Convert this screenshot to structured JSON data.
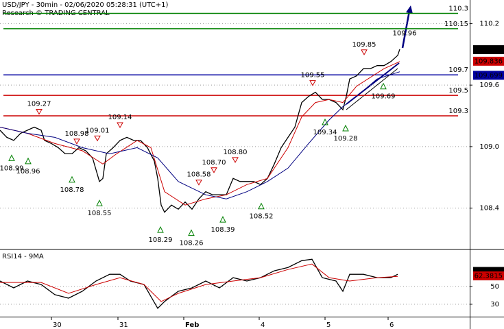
{
  "header": {
    "title": "USD/JPY - 30min - 02/06/2020 05:28:31 (UTC+1)",
    "subtitle": "Research © TRADING CENTRAL"
  },
  "chart_data": [
    {
      "type": "line",
      "panel": "price",
      "xlim": [
        0,
        342.5
      ],
      "ylim": [
        108.01,
        110.43
      ],
      "xticks": [
        {
          "value": 37.5,
          "label": "30"
        },
        {
          "value": 86,
          "label": "31"
        },
        {
          "value": 134,
          "label": "Feb"
        },
        {
          "value": 189,
          "label": "4"
        },
        {
          "value": 237,
          "label": "5"
        },
        {
          "value": 283,
          "label": "6"
        }
      ],
      "yticks": [
        108.4,
        {
          "value": 109,
          "label": "109.0"
        },
        109.6,
        110.2
      ],
      "grid": true,
      "series": [
        {
          "color": "#000000",
          "x": [
            0,
            5,
            10,
            15,
            20,
            25,
            30,
            32.5,
            37.5,
            42.5,
            47.5,
            52.5,
            57.5,
            62.5,
            67.5,
            72.5,
            75,
            77.5,
            82.5,
            87.5,
            92.5,
            97.5,
            102.5,
            107.5,
            112.5,
            115,
            117.5,
            120,
            125,
            130,
            135,
            140,
            145,
            150,
            155,
            160,
            165,
            170,
            175,
            180,
            185,
            190,
            195,
            200,
            205,
            210,
            215,
            220,
            225,
            230,
            235,
            240,
            245,
            250,
            252.5,
            255,
            260,
            265,
            270,
            275,
            280,
            285,
            290,
            291.5
          ],
          "values": [
            109.16,
            109.09,
            109.06,
            109.13,
            109.16,
            109.19,
            109.16,
            109.06,
            109.03,
            108.99,
            108.93,
            108.93,
            108.99,
            108.96,
            108.89,
            108.66,
            108.69,
            108.93,
            108.99,
            109.06,
            109.09,
            109.06,
            109.06,
            108.99,
            108.86,
            108.69,
            108.43,
            108.36,
            108.43,
            108.39,
            108.46,
            108.39,
            108.49,
            108.56,
            108.53,
            108.53,
            108.53,
            108.69,
            108.66,
            108.66,
            108.66,
            108.63,
            108.69,
            108.83,
            108.99,
            109.09,
            109.19,
            109.43,
            109.49,
            109.53,
            109.46,
            109.46,
            109.43,
            109.36,
            109.49,
            109.66,
            109.69,
            109.76,
            109.76,
            109.79,
            109.79,
            109.83,
            109.89,
            109.95
          ]
        },
        {
          "color": "#cc0000",
          "x": [
            0,
            20,
            40,
            60,
            75,
            85,
            100,
            110,
            120,
            135,
            150,
            165,
            180,
            195,
            210,
            220,
            230,
            240,
            250,
            260,
            280,
            291.5
          ],
          "values": [
            109.19,
            109.13,
            109.03,
            108.96,
            108.83,
            108.93,
            109.06,
            108.99,
            108.56,
            108.43,
            108.49,
            108.53,
            108.63,
            108.69,
            108.99,
            109.29,
            109.43,
            109.46,
            109.43,
            109.59,
            109.76,
            109.83
          ]
        },
        {
          "color": "#000080",
          "x": [
            0,
            20,
            40,
            60,
            80,
            100,
            115,
            130,
            150,
            165,
            180,
            195,
            210,
            225,
            240,
            250,
            260,
            275,
            291.5
          ],
          "values": [
            109.19,
            109.13,
            109.09,
            108.99,
            108.93,
            108.99,
            108.89,
            108.66,
            108.53,
            108.49,
            108.56,
            108.66,
            108.79,
            109.03,
            109.26,
            109.39,
            109.49,
            109.66,
            109.73
          ]
        }
      ],
      "levels": [
        {
          "value": 110.3,
          "label": "110.3",
          "color": "#008000"
        },
        {
          "value": 110.15,
          "label": "110.15",
          "color": "#008000"
        },
        {
          "value": 109.7,
          "label": "109.7",
          "color": "#0000a0"
        },
        {
          "value": 109.5,
          "label": "109.5",
          "color": "#cc0000"
        },
        {
          "value": 109.3,
          "label": "109.3",
          "color": "#cc0000"
        }
      ],
      "annotations": [
        {
          "value": 109.27,
          "label": "109.27",
          "x": 28.5,
          "kind": "high"
        },
        {
          "value": 108.98,
          "label": "108.98",
          "x": 56,
          "kind": "high"
        },
        {
          "value": 109.01,
          "label": "109.01",
          "x": 71,
          "kind": "high"
        },
        {
          "value": 109.14,
          "label": "109.14",
          "x": 87.5,
          "kind": "high"
        },
        {
          "value": 108.58,
          "label": "108.58",
          "x": 145,
          "kind": "high"
        },
        {
          "value": 108.7,
          "label": "108.70",
          "x": 156,
          "kind": "high"
        },
        {
          "value": 108.8,
          "label": "108.80",
          "x": 171.5,
          "kind": "high"
        },
        {
          "value": 109.55,
          "label": "109.55",
          "x": 228,
          "kind": "high"
        },
        {
          "value": 109.85,
          "label": "109.85",
          "x": 265.5,
          "kind": "high"
        },
        {
          "value": 109.96,
          "label": "109.96",
          "x": 295,
          "kind": "label"
        },
        {
          "value": 108.99,
          "label": "108.99",
          "x": 8.5,
          "kind": "low"
        },
        {
          "value": 108.96,
          "label": "108.96",
          "x": 20.5,
          "kind": "low"
        },
        {
          "value": 108.78,
          "label": "108.78",
          "x": 52.5,
          "kind": "low"
        },
        {
          "value": 108.55,
          "label": "108.55",
          "x": 72.5,
          "kind": "low"
        },
        {
          "value": 108.29,
          "label": "108.29",
          "x": 117,
          "kind": "low"
        },
        {
          "value": 108.26,
          "label": "108.26",
          "x": 139.5,
          "kind": "low"
        },
        {
          "value": 108.39,
          "label": "108.39",
          "x": 162.5,
          "kind": "low"
        },
        {
          "value": 108.52,
          "label": "108.52",
          "x": 190.5,
          "kind": "low"
        },
        {
          "value": 109.34,
          "label": "109.34",
          "x": 237,
          "kind": "low"
        },
        {
          "value": 109.28,
          "label": "109.28",
          "x": 252,
          "kind": "low"
        },
        {
          "value": 109.69,
          "label": "109.69",
          "x": 279.5,
          "kind": "low"
        }
      ],
      "price_tags": [
        {
          "value": 109.949,
          "label": "109.949",
          "color": "#000000"
        },
        {
          "value": 109.836,
          "label": "109.836",
          "color": "#cc0000"
        },
        {
          "value": 109.699,
          "label": "109.699",
          "color": "#0000a0"
        }
      ]
    },
    {
      "type": "line",
      "panel": "rsi",
      "title": "RSI14 - 9MA",
      "xlim": [
        0,
        342.5
      ],
      "ylim": [
        16,
        91
      ],
      "yticks": [
        30,
        50
      ],
      "grid": true,
      "series": [
        {
          "color": "#000000",
          "x": [
            0,
            10,
            20,
            30,
            40,
            50,
            60,
            70,
            80,
            87.5,
            95,
            105,
            115,
            120,
            130,
            140,
            150,
            160,
            170,
            180,
            190,
            200,
            210,
            220,
            227.5,
            235,
            245,
            250,
            255,
            265,
            275,
            285,
            290
          ],
          "values": [
            56.2,
            48.5,
            56.2,
            52.3,
            40.8,
            36.9,
            44.6,
            56.2,
            63.8,
            63.8,
            56.2,
            52.3,
            25.4,
            33.1,
            44.6,
            48.5,
            56.2,
            48.5,
            60,
            56.2,
            60,
            67.7,
            71.5,
            79.2,
            80.8,
            60,
            56.2,
            44.6,
            63.8,
            63.8,
            60,
            60,
            63.8
          ]
        },
        {
          "color": "#cc0000",
          "x": [
            0,
            30,
            50,
            70,
            87.5,
            105,
            117.5,
            130,
            150,
            170,
            190,
            210,
            227.5,
            240,
            255,
            275,
            290
          ],
          "values": [
            54.6,
            54.6,
            42.3,
            52.3,
            60,
            52.3,
            33.1,
            42.3,
            52.3,
            56.2,
            60,
            69.2,
            75.4,
            60,
            56.2,
            60,
            61.5
          ]
        }
      ],
      "price_tags": [
        {
          "value": 67.4205,
          "label": "67.4205",
          "color": "#000000"
        },
        {
          "value": 62.3815,
          "label": "62.3815",
          "color": "#cc0000"
        }
      ]
    }
  ]
}
